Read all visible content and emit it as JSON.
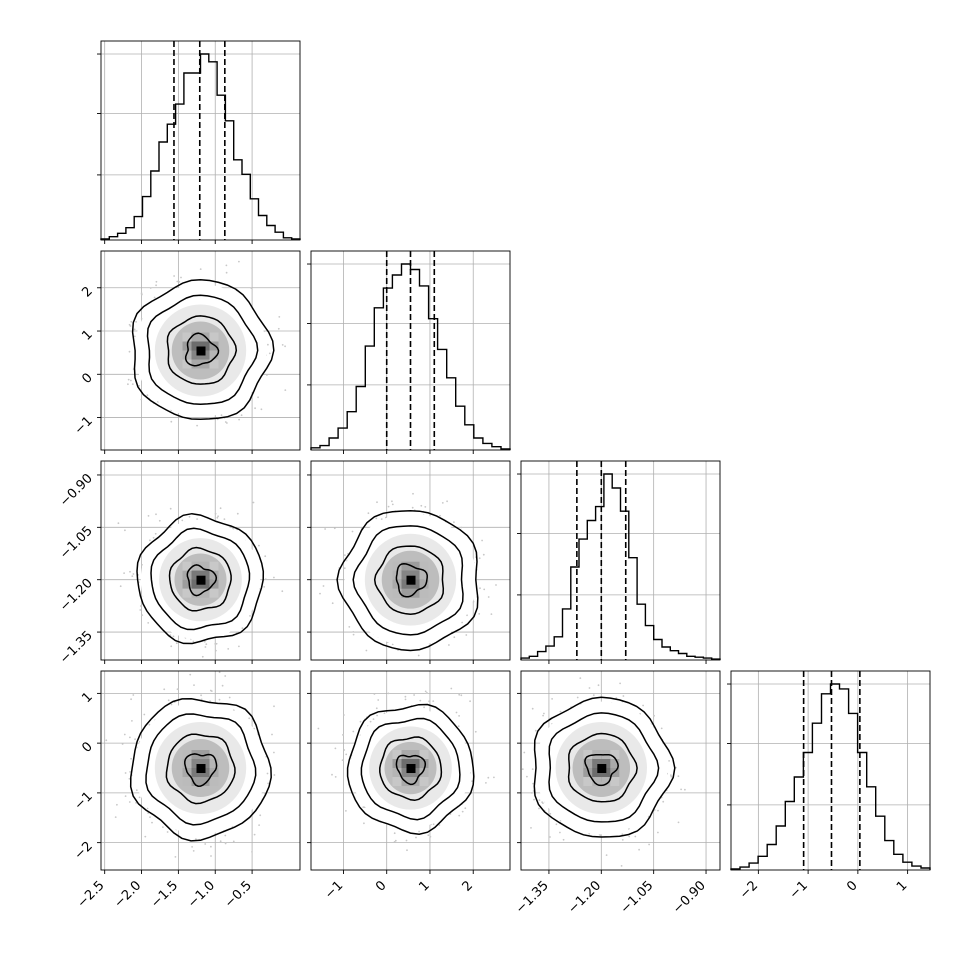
{
  "chart_data": {
    "type": "corner",
    "parameters": 4,
    "parameter_names": [],
    "grid": true,
    "quantile_lines": "dashed at 16th, 50th, 84th percentiles",
    "colors": {
      "line": "#000000",
      "grid": "#b0b0b0",
      "scatter": "#c8c8c8"
    },
    "axes": [
      {
        "lim": [
          -2.55,
          0.15
        ],
        "ticks": [
          -2.5,
          -2.0,
          -1.5,
          -1.0,
          -0.5
        ],
        "tick_labels": [
          "−2.5",
          "−2.0",
          "−1.5",
          "−1.0",
          "−0.5"
        ]
      },
      {
        "lim": [
          -1.75,
          2.85
        ],
        "ticks": [
          -1,
          0,
          1,
          2
        ],
        "tick_labels": [
          "−1",
          "0",
          "1",
          "2"
        ]
      },
      {
        "lim": [
          -1.43,
          -0.86
        ],
        "ticks": [
          -1.35,
          -1.2,
          -1.05,
          -0.9
        ],
        "tick_labels": [
          "−1.35",
          "−1.20",
          "−1.05",
          "−0.90"
        ]
      },
      {
        "lim": [
          -2.55,
          1.45
        ],
        "ticks": [
          -2,
          -1,
          0,
          1
        ],
        "tick_labels": [
          "−2",
          "−1",
          "0",
          "1"
        ]
      }
    ],
    "means": [
      -1.2,
      0.55,
      -1.2,
      -0.5
    ],
    "quantiles": [
      [
        -1.56,
        -1.21,
        -0.87
      ],
      [
        0.0,
        0.55,
        1.1
      ],
      [
        -1.27,
        -1.2,
        -1.13
      ],
      [
        -1.09,
        -0.53,
        0.04
      ]
    ],
    "histograms": [
      [
        1,
        3,
        6,
        11,
        21,
        39,
        62,
        88,
        104,
        122,
        150,
        150,
        167,
        160,
        130,
        107,
        72,
        59,
        37,
        22,
        13,
        7,
        2,
        1
      ],
      [
        2,
        4,
        11,
        20,
        35,
        58,
        95,
        130,
        148,
        160,
        170,
        165,
        150,
        120,
        92,
        66,
        40,
        23,
        11,
        6,
        3,
        1
      ],
      [
        2,
        4,
        9,
        15,
        25,
        55,
        100,
        130,
        150,
        165,
        200,
        185,
        160,
        110,
        60,
        37,
        22,
        14,
        10,
        7,
        4,
        3,
        2,
        1
      ],
      [
        1,
        3,
        7,
        14,
        26,
        45,
        70,
        95,
        120,
        150,
        180,
        190,
        185,
        160,
        120,
        85,
        55,
        30,
        16,
        8,
        4,
        2
      ]
    ]
  }
}
